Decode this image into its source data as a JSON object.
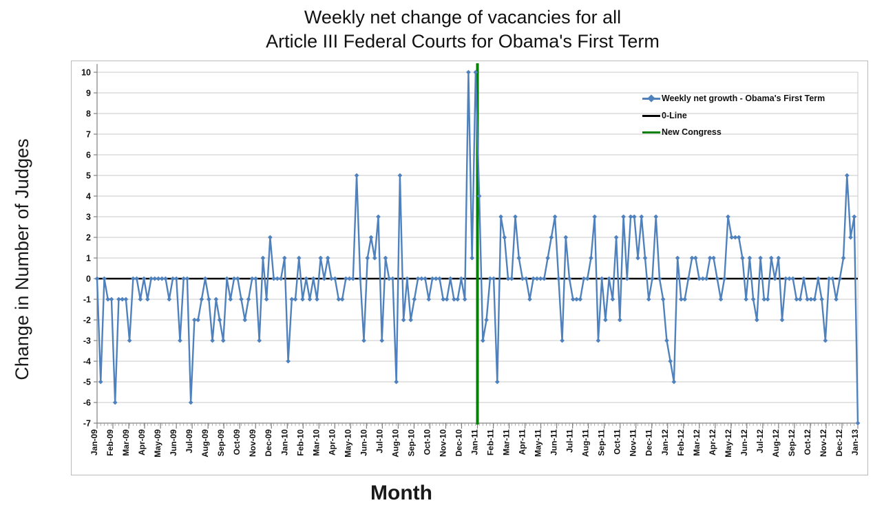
{
  "title": {
    "line1": "Weekly net change of vacancies for all",
    "line2": "Article III Federal Courts for Obama's First Term"
  },
  "axes": {
    "y_title": "Change in Number of Judges",
    "x_title": "Month"
  },
  "legend": [
    {
      "label": "Weekly net growth - Obama's First Term",
      "type": "line-marker",
      "color": "#4f81bd"
    },
    {
      "label": "0-Line",
      "type": "line",
      "color": "#000000"
    },
    {
      "label": "New Congress",
      "type": "line",
      "color": "#008000"
    }
  ],
  "chart_data": {
    "type": "line",
    "title": "Weekly net change of vacancies for all Article III Federal Courts for Obama's First Term",
    "xlabel": "Month",
    "ylabel": "Change in Number of Judges",
    "ylim": [
      -7,
      10
    ],
    "y_ticks": [
      10,
      9,
      8,
      7,
      6,
      5,
      4,
      3,
      2,
      1,
      0,
      -1,
      -2,
      -3,
      -4,
      -5,
      -6,
      -7
    ],
    "grid": "horizontal-only",
    "legend_position": "top-right-inside",
    "x_tick_labels": [
      "Jan-09",
      "Feb-09",
      "Mar-09",
      "Apr-09",
      "May-09",
      "Jun-09",
      "Jul-09",
      "Aug-09",
      "Sep-09",
      "Oct-09",
      "Nov-09",
      "Dec-09",
      "Jan-10",
      "Feb-10",
      "Mar-10",
      "Apr-10",
      "May-10",
      "Jun-10",
      "Jul-10",
      "Aug-10",
      "Sep-10",
      "Oct-10",
      "Nov-10",
      "Dec-10",
      "Jan-11",
      "Feb-11",
      "Mar-11",
      "Apr-11",
      "May-11",
      "Jun-11",
      "Jul-11",
      "Aug-11",
      "Sep-11",
      "Oct-11",
      "Nov-11",
      "Dec-11",
      "Jan-12",
      "Feb-12",
      "Mar-12",
      "Apr-12",
      "May-12",
      "Jun-12",
      "Jul-12",
      "Aug-12",
      "Sep-12",
      "Oct-12",
      "Nov-12",
      "Dec-12",
      "Jan-13"
    ],
    "series": [
      {
        "name": "Weekly net growth - Obama's First Term",
        "color": "#4f81bd",
        "marker": "diamond",
        "cadence": "weekly",
        "values": [
          0,
          -5,
          0,
          -1,
          -1,
          -6,
          -1,
          -1,
          -1,
          -3,
          0,
          0,
          -1,
          0,
          -1,
          0,
          0,
          0,
          0,
          0,
          -1,
          0,
          0,
          -3,
          0,
          0,
          -6,
          -2,
          -2,
          -1,
          0,
          -1,
          -3,
          -1,
          -2,
          -3,
          0,
          -1,
          0,
          0,
          -1,
          -2,
          -1,
          0,
          0,
          -3,
          1,
          -1,
          2,
          0,
          0,
          0,
          1,
          -4,
          -1,
          -1,
          1,
          -1,
          0,
          -1,
          0,
          -1,
          1,
          0,
          1,
          0,
          0,
          -1,
          -1,
          0,
          0,
          0,
          5,
          0,
          -3,
          1,
          2,
          1,
          3,
          -3,
          1,
          0,
          0,
          -5,
          5,
          -2,
          0,
          -2,
          -1,
          0,
          0,
          0,
          -1,
          0,
          0,
          0,
          -1,
          -1,
          0,
          -1,
          -1,
          0,
          -1,
          10,
          1,
          10,
          4,
          -3,
          -2,
          0,
          0,
          -5,
          3,
          2,
          0,
          0,
          3,
          1,
          0,
          0,
          -1,
          0,
          0,
          0,
          0,
          1,
          2,
          3,
          0,
          -3,
          2,
          0,
          -1,
          -1,
          -1,
          0,
          0,
          1,
          3,
          -3,
          0,
          -2,
          0,
          -1,
          2,
          -2,
          3,
          0,
          3,
          3,
          1,
          3,
          1,
          -1,
          0,
          3,
          0,
          -1,
          -3,
          -4,
          -5,
          1,
          -1,
          -1,
          0,
          1,
          1,
          0,
          0,
          0,
          1,
          1,
          0,
          -1,
          0,
          3,
          2,
          2,
          2,
          1,
          -1,
          1,
          -1,
          -2,
          1,
          -1,
          -1,
          1,
          0,
          1,
          -2,
          0,
          0,
          0,
          -1,
          -1,
          0,
          -1,
          -1,
          -1,
          0,
          -1,
          -3,
          0,
          0,
          -1,
          0,
          1,
          5,
          2,
          3,
          -7
        ]
      }
    ],
    "reference_lines": [
      {
        "name": "0-Line",
        "orientation": "horizontal",
        "value": 0,
        "color": "#000000"
      },
      {
        "name": "New Congress",
        "orientation": "vertical",
        "at_x_label": "Jan-11",
        "color": "#008000"
      }
    ]
  },
  "style": {
    "series_color": "#4f81bd",
    "zero_line_color": "#000000",
    "congress_line_color": "#008000",
    "gridline_color": "#c9c9c9",
    "axis_color": "#808080",
    "tick_label_color": "#111111"
  }
}
